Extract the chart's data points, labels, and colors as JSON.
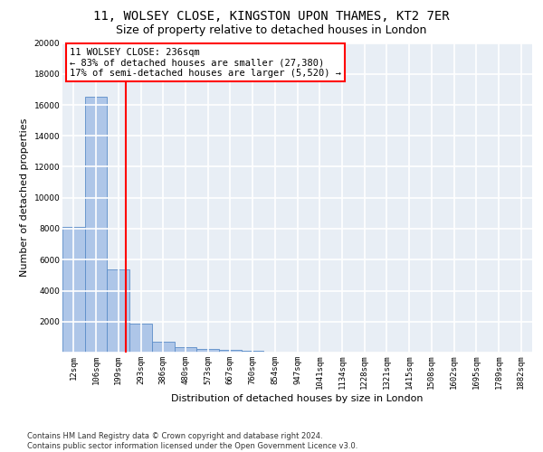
{
  "title_line1": "11, WOLSEY CLOSE, KINGSTON UPON THAMES, KT2 7ER",
  "title_line2": "Size of property relative to detached houses in London",
  "xlabel": "Distribution of detached houses by size in London",
  "ylabel": "Number of detached properties",
  "footnote": "Contains HM Land Registry data © Crown copyright and database right 2024.\nContains public sector information licensed under the Open Government Licence v3.0.",
  "bar_labels": [
    "12sqm",
    "106sqm",
    "199sqm",
    "293sqm",
    "386sqm",
    "480sqm",
    "573sqm",
    "667sqm",
    "760sqm",
    "854sqm",
    "947sqm",
    "1041sqm",
    "1134sqm",
    "1228sqm",
    "1321sqm",
    "1415sqm",
    "1508sqm",
    "1602sqm",
    "1695sqm",
    "1789sqm",
    "1882sqm"
  ],
  "bar_values": [
    8100,
    16500,
    5400,
    1850,
    700,
    330,
    220,
    180,
    130,
    0,
    0,
    0,
    0,
    0,
    0,
    0,
    0,
    0,
    0,
    0,
    0
  ],
  "bar_color": "#aec6e8",
  "bar_edge_color": "#5b8dc8",
  "property_line_x": 2.33,
  "property_line_color": "red",
  "annotation_text": "11 WOLSEY CLOSE: 236sqm\n← 83% of detached houses are smaller (27,380)\n17% of semi-detached houses are larger (5,520) →",
  "ylim": [
    0,
    20000
  ],
  "yticks": [
    0,
    2000,
    4000,
    6000,
    8000,
    10000,
    12000,
    14000,
    16000,
    18000,
    20000
  ],
  "background_color": "#e8eef5",
  "grid_color": "#ffffff",
  "title_fontsize": 10,
  "subtitle_fontsize": 9,
  "annotation_fontsize": 7.5,
  "axis_label_fontsize": 8,
  "tick_fontsize": 6.5,
  "footnote_fontsize": 6
}
